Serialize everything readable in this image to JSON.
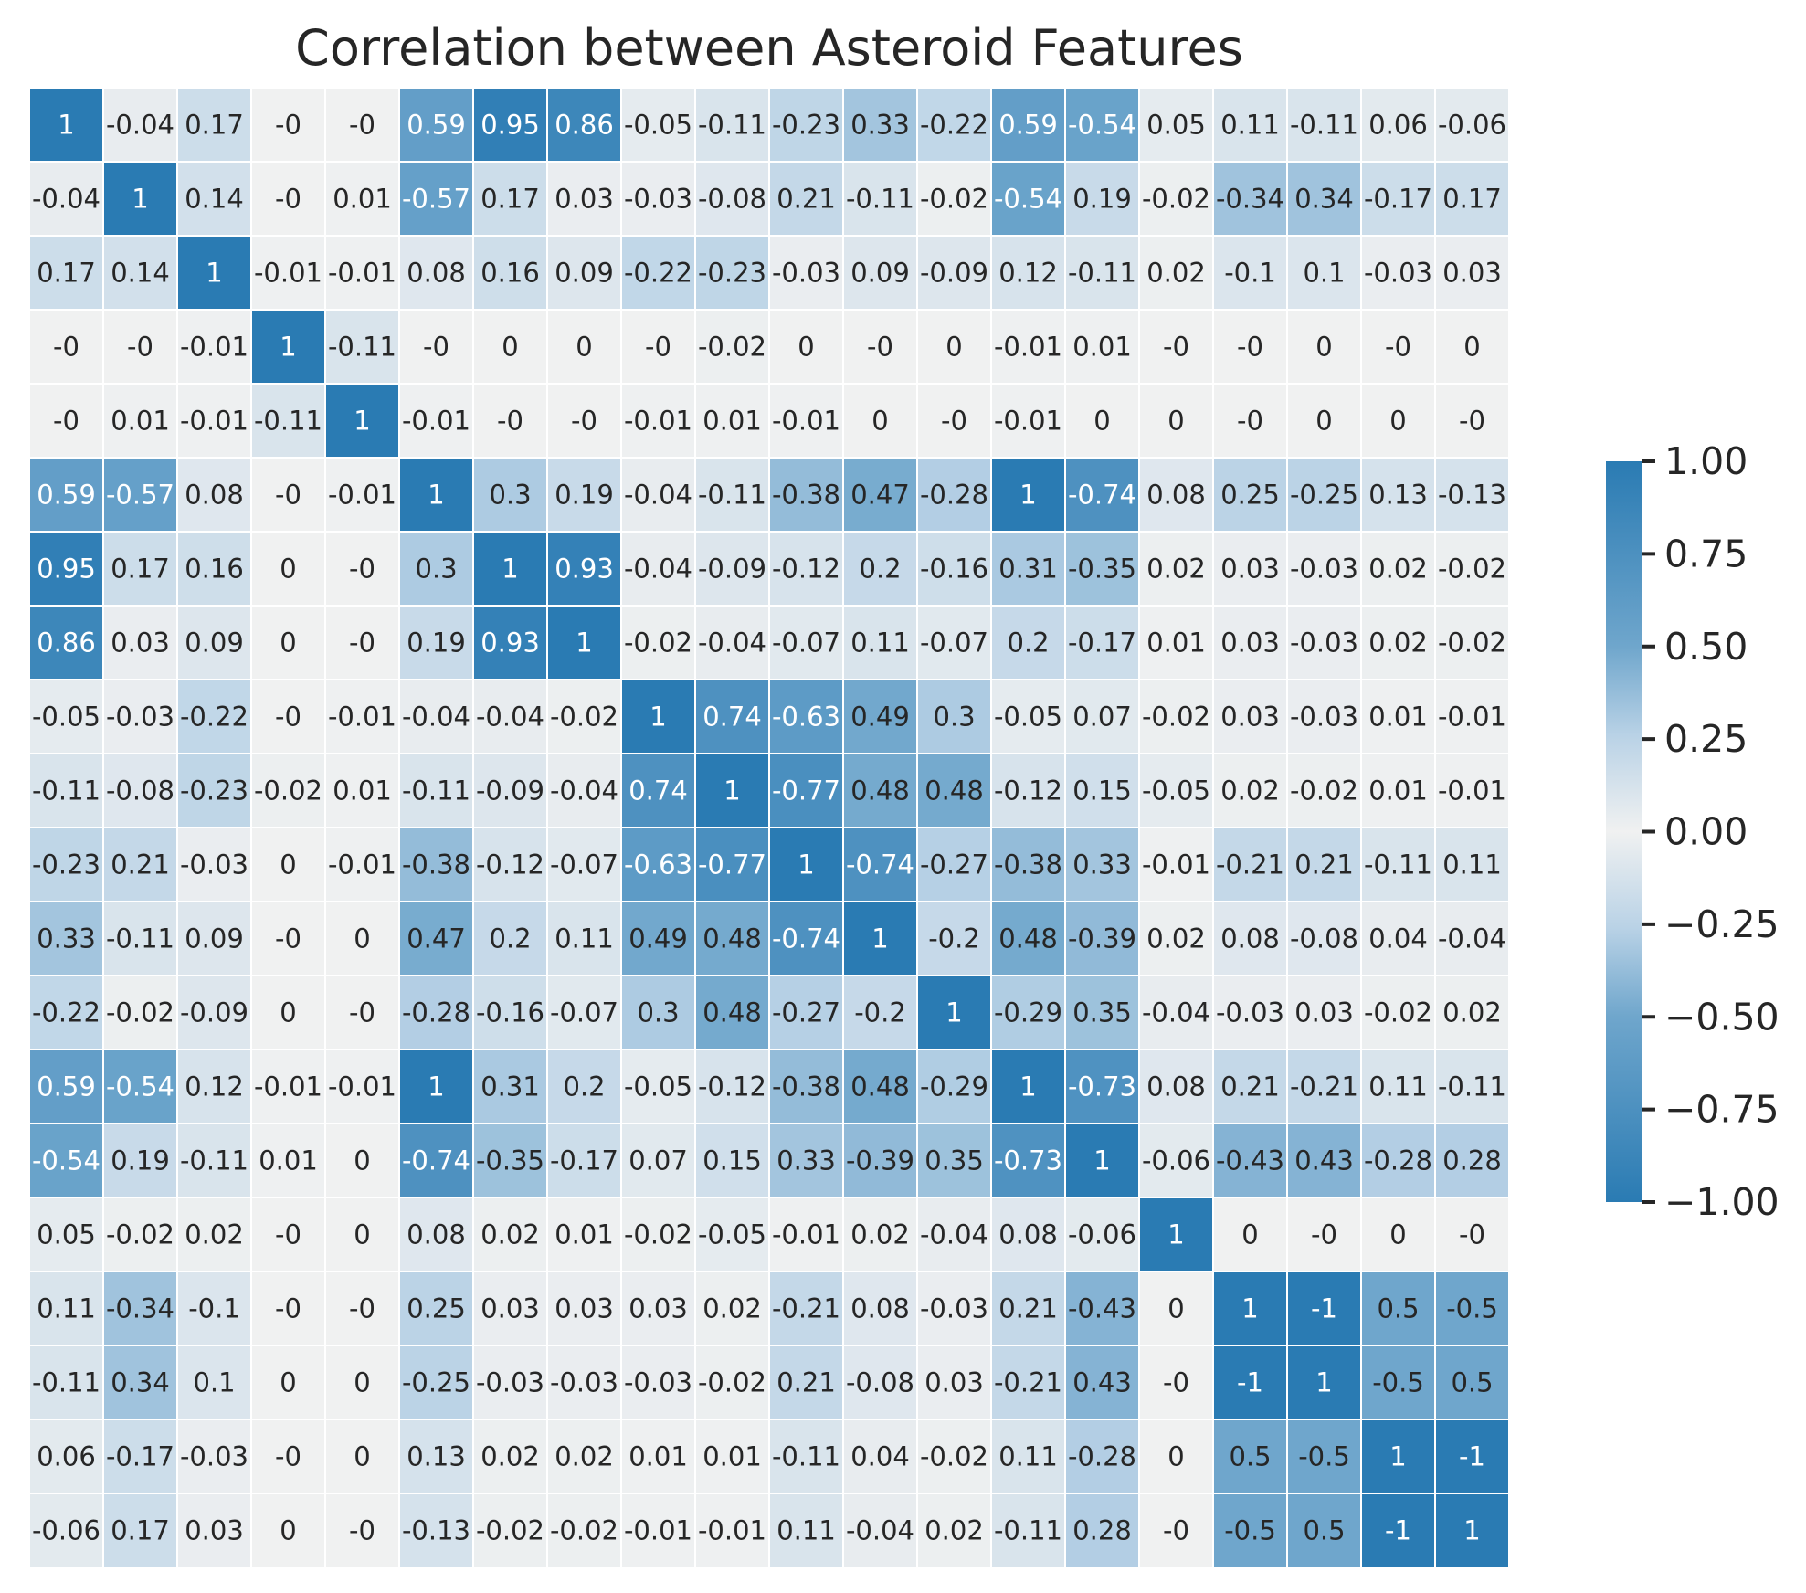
{
  "chart_data": {
    "type": "heatmap",
    "title": "Correlation between Asteroid Features",
    "xlabel": "",
    "ylabel": "",
    "colorbar": {
      "ticks": [
        "1.00",
        "0.75",
        "0.50",
        "0.25",
        "0.00",
        "−0.25",
        "−0.50",
        "−0.75",
        "−1.00"
      ],
      "vmin": -1,
      "vmax": 1,
      "colors": {
        "extreme": "#2a7bb3",
        "mid": "#6fa6cc",
        "light": "#b9d2e6",
        "center": "#f0f1f1"
      }
    },
    "values": [
      [
        "1",
        "-0.04",
        "0.17",
        "-0",
        "-0",
        "0.59",
        "0.95",
        "0.86",
        "-0.05",
        "-0.11",
        "-0.23",
        "0.33",
        "-0.22",
        "0.59",
        "-0.54",
        "0.05",
        "0.11",
        "-0.11",
        "0.06",
        "-0.06"
      ],
      [
        "-0.04",
        "1",
        "0.14",
        "-0",
        "0.01",
        "-0.57",
        "0.17",
        "0.03",
        "-0.03",
        "-0.08",
        "0.21",
        "-0.11",
        "-0.02",
        "-0.54",
        "0.19",
        "-0.02",
        "-0.34",
        "0.34",
        "-0.17",
        "0.17"
      ],
      [
        "0.17",
        "0.14",
        "1",
        "-0.01",
        "-0.01",
        "0.08",
        "0.16",
        "0.09",
        "-0.22",
        "-0.23",
        "-0.03",
        "0.09",
        "-0.09",
        "0.12",
        "-0.11",
        "0.02",
        "-0.1",
        "0.1",
        "-0.03",
        "0.03"
      ],
      [
        "-0",
        "-0",
        "-0.01",
        "1",
        "-0.11",
        "-0",
        "0",
        "0",
        "-0",
        "-0.02",
        "0",
        "-0",
        "0",
        "-0.01",
        "0.01",
        "-0",
        "-0",
        "0",
        "-0",
        "0"
      ],
      [
        "-0",
        "0.01",
        "-0.01",
        "-0.11",
        "1",
        "-0.01",
        "-0",
        "-0",
        "-0.01",
        "0.01",
        "-0.01",
        "0",
        "-0",
        "-0.01",
        "0",
        "0",
        "-0",
        "0",
        "0",
        "-0"
      ],
      [
        "0.59",
        "-0.57",
        "0.08",
        "-0",
        "-0.01",
        "1",
        "0.3",
        "0.19",
        "-0.04",
        "-0.11",
        "-0.38",
        "0.47",
        "-0.28",
        "1",
        "-0.74",
        "0.08",
        "0.25",
        "-0.25",
        "0.13",
        "-0.13"
      ],
      [
        "0.95",
        "0.17",
        "0.16",
        "0",
        "-0",
        "0.3",
        "1",
        "0.93",
        "-0.04",
        "-0.09",
        "-0.12",
        "0.2",
        "-0.16",
        "0.31",
        "-0.35",
        "0.02",
        "0.03",
        "-0.03",
        "0.02",
        "-0.02"
      ],
      [
        "0.86",
        "0.03",
        "0.09",
        "0",
        "-0",
        "0.19",
        "0.93",
        "1",
        "-0.02",
        "-0.04",
        "-0.07",
        "0.11",
        "-0.07",
        "0.2",
        "-0.17",
        "0.01",
        "0.03",
        "-0.03",
        "0.02",
        "-0.02"
      ],
      [
        "-0.05",
        "-0.03",
        "-0.22",
        "-0",
        "-0.01",
        "-0.04",
        "-0.04",
        "-0.02",
        "1",
        "0.74",
        "-0.63",
        "0.49",
        "0.3",
        "-0.05",
        "0.07",
        "-0.02",
        "0.03",
        "-0.03",
        "0.01",
        "-0.01"
      ],
      [
        "-0.11",
        "-0.08",
        "-0.23",
        "-0.02",
        "0.01",
        "-0.11",
        "-0.09",
        "-0.04",
        "0.74",
        "1",
        "-0.77",
        "0.48",
        "0.48",
        "-0.12",
        "0.15",
        "-0.05",
        "0.02",
        "-0.02",
        "0.01",
        "-0.01"
      ],
      [
        "-0.23",
        "0.21",
        "-0.03",
        "0",
        "-0.01",
        "-0.38",
        "-0.12",
        "-0.07",
        "-0.63",
        "-0.77",
        "1",
        "-0.74",
        "-0.27",
        "-0.38",
        "0.33",
        "-0.01",
        "-0.21",
        "0.21",
        "-0.11",
        "0.11"
      ],
      [
        "0.33",
        "-0.11",
        "0.09",
        "-0",
        "0",
        "0.47",
        "0.2",
        "0.11",
        "0.49",
        "0.48",
        "-0.74",
        "1",
        "-0.2",
        "0.48",
        "-0.39",
        "0.02",
        "0.08",
        "-0.08",
        "0.04",
        "-0.04"
      ],
      [
        "-0.22",
        "-0.02",
        "-0.09",
        "0",
        "-0",
        "-0.28",
        "-0.16",
        "-0.07",
        "0.3",
        "0.48",
        "-0.27",
        "-0.2",
        "1",
        "-0.29",
        "0.35",
        "-0.04",
        "-0.03",
        "0.03",
        "-0.02",
        "0.02"
      ],
      [
        "0.59",
        "-0.54",
        "0.12",
        "-0.01",
        "-0.01",
        "1",
        "0.31",
        "0.2",
        "-0.05",
        "-0.12",
        "-0.38",
        "0.48",
        "-0.29",
        "1",
        "-0.73",
        "0.08",
        "0.21",
        "-0.21",
        "0.11",
        "-0.11"
      ],
      [
        "-0.54",
        "0.19",
        "-0.11",
        "0.01",
        "0",
        "-0.74",
        "-0.35",
        "-0.17",
        "0.07",
        "0.15",
        "0.33",
        "-0.39",
        "0.35",
        "-0.73",
        "1",
        "-0.06",
        "-0.43",
        "0.43",
        "-0.28",
        "0.28"
      ],
      [
        "0.05",
        "-0.02",
        "0.02",
        "-0",
        "0",
        "0.08",
        "0.02",
        "0.01",
        "-0.02",
        "-0.05",
        "-0.01",
        "0.02",
        "-0.04",
        "0.08",
        "-0.06",
        "1",
        "0",
        "-0",
        "0",
        "-0"
      ],
      [
        "0.11",
        "-0.34",
        "-0.1",
        "-0",
        "-0",
        "0.25",
        "0.03",
        "0.03",
        "0.03",
        "0.02",
        "-0.21",
        "0.08",
        "-0.03",
        "0.21",
        "-0.43",
        "0",
        "1",
        "-1",
        "0.5",
        "-0.5"
      ],
      [
        "-0.11",
        "0.34",
        "0.1",
        "0",
        "0",
        "-0.25",
        "-0.03",
        "-0.03",
        "-0.03",
        "-0.02",
        "0.21",
        "-0.08",
        "0.03",
        "-0.21",
        "0.43",
        "-0",
        "-1",
        "1",
        "-0.5",
        "0.5"
      ],
      [
        "0.06",
        "-0.17",
        "-0.03",
        "-0",
        "0",
        "0.13",
        "0.02",
        "0.02",
        "0.01",
        "0.01",
        "-0.11",
        "0.04",
        "-0.02",
        "0.11",
        "-0.28",
        "0",
        "0.5",
        "-0.5",
        "1",
        "-1"
      ],
      [
        "-0.06",
        "0.17",
        "0.03",
        "0",
        "-0",
        "-0.13",
        "-0.02",
        "-0.02",
        "-0.01",
        "-0.01",
        "0.11",
        "-0.04",
        "0.02",
        "-0.11",
        "0.28",
        "-0",
        "-0.5",
        "0.5",
        "-1",
        "1"
      ]
    ]
  }
}
